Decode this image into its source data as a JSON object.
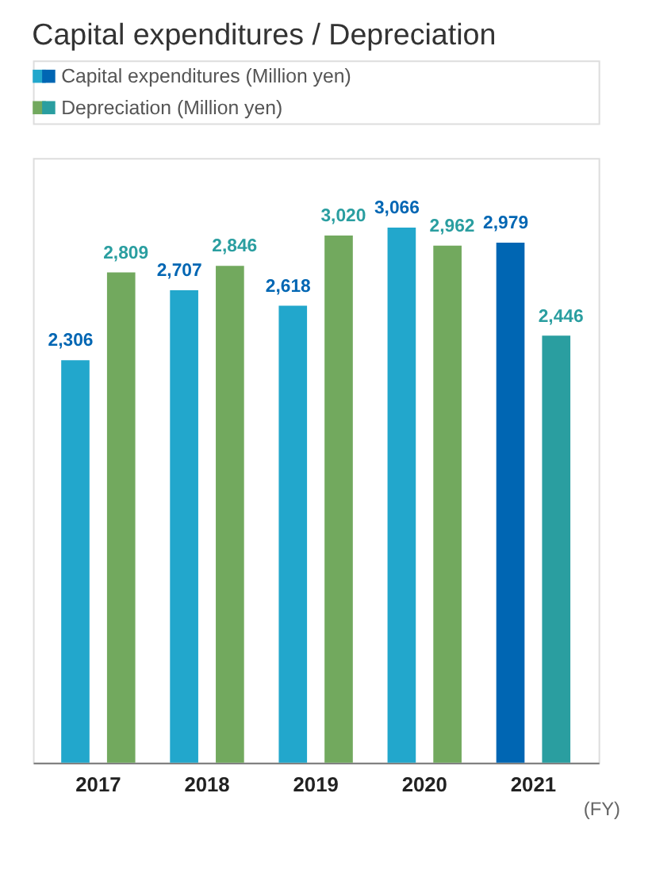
{
  "chart_data": {
    "type": "bar",
    "title": "Capital expenditures / Depreciation",
    "xlabel": "(FY)",
    "categories": [
      "2017",
      "2018",
      "2019",
      "2020",
      "2021"
    ],
    "series": [
      {
        "name": "Capital expenditures (Million yen)",
        "colors": [
          "#22a7cc",
          "#22a7cc",
          "#22a7cc",
          "#22a7cc",
          "#0066b3"
        ],
        "values": [
          2306,
          2707,
          2618,
          3066,
          2979
        ],
        "value_labels": [
          "2,306",
          "2,707",
          "2,618",
          "3,066",
          "2,979"
        ]
      },
      {
        "name": "Depreciation (Million yen)",
        "colors": [
          "#72a95e",
          "#72a95e",
          "#72a95e",
          "#72a95e",
          "#2a9ea0"
        ],
        "values": [
          2809,
          2846,
          3020,
          2962,
          2446
        ],
        "value_labels": [
          "2,809",
          "2,846",
          "3,020",
          "2,962",
          "2,446"
        ]
      }
    ],
    "legend": "top left"
  }
}
